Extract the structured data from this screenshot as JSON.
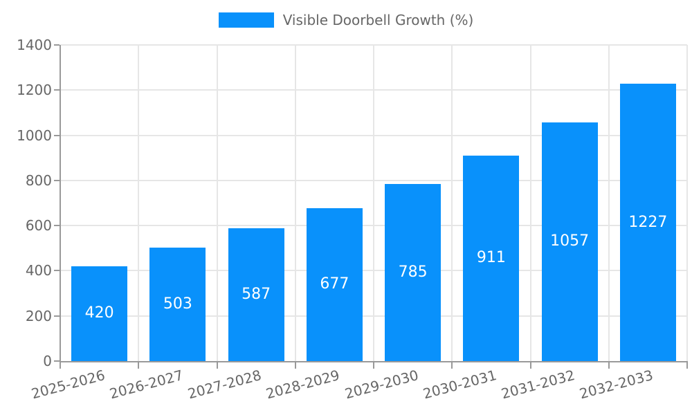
{
  "chart_data": {
    "type": "bar",
    "title": "Visible Doorbell Growth (%)",
    "categories": [
      "2025-2026",
      "2026-2027",
      "2027-2028",
      "2028-2029",
      "2029-2030",
      "2030-2031",
      "2031-2032",
      "2032-2033"
    ],
    "values": [
      420,
      503,
      587,
      677,
      785,
      911,
      1057,
      1227
    ],
    "xlabel": "",
    "ylabel": "",
    "ylim": [
      0,
      1400
    ],
    "yticks": [
      0,
      200,
      400,
      600,
      800,
      1000,
      1200,
      1400
    ],
    "grid": "on",
    "legend_position": "top-center",
    "bar_label_position": "inside-center",
    "colors": {
      "bar": "#0991fb",
      "grid": "#e6e6e6",
      "axis": "#999999",
      "tick_text": "#666666",
      "legend_text": "#666666",
      "bar_label_text": "#ffffff",
      "background": "#ffffff"
    }
  }
}
